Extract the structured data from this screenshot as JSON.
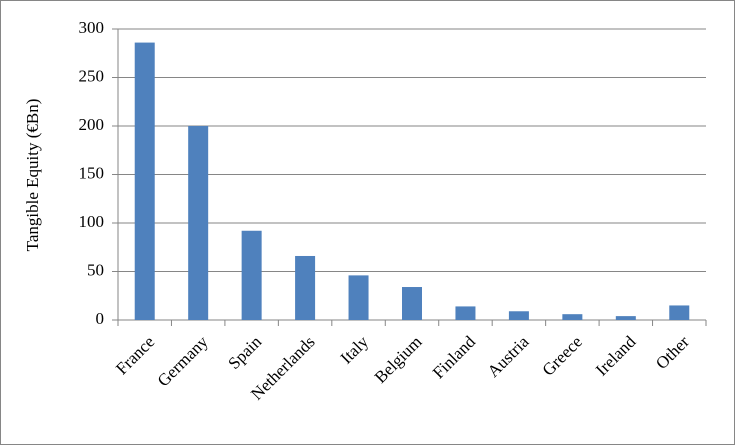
{
  "chart_data": {
    "type": "bar",
    "y_label": "Tangible Equity (€Bn)",
    "categories": [
      "France",
      "Germany",
      "Spain",
      "Netherlands",
      "Italy",
      "Belgium",
      "Finland",
      "Austria",
      "Greece",
      "Ireland",
      "Other"
    ],
    "values": [
      286,
      200,
      92,
      66,
      46,
      34,
      14,
      9,
      6,
      4,
      15
    ],
    "color": "#4f81bd",
    "ylim": [
      0,
      300
    ],
    "yticks": [
      0,
      50,
      100,
      150,
      200,
      250,
      300
    ],
    "grid": true
  }
}
